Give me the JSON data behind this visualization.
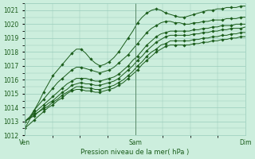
{
  "title": "",
  "xlabel": "Pression niveau de la mer( hPa )",
  "ylim": [
    1012,
    1021.5
  ],
  "xlim": [
    0,
    48
  ],
  "yticks": [
    1012,
    1013,
    1014,
    1015,
    1016,
    1017,
    1018,
    1019,
    1020,
    1021
  ],
  "xtick_positions": [
    0,
    24,
    48
  ],
  "xtick_labels": [
    "Ven",
    "Sam",
    "Dim"
  ],
  "bg_color": "#cceedd",
  "grid_color": "#99ccbb",
  "line_color": "#1a5c1a",
  "marker_color": "#1a5c1a",
  "series": [
    [
      1012.5,
      1013.1,
      1013.8,
      1014.4,
      1015.1,
      1015.7,
      1016.3,
      1016.7,
      1017.1,
      1017.5,
      1017.9,
      1018.2,
      1018.2,
      1017.9,
      1017.5,
      1017.2,
      1017.0,
      1017.1,
      1017.3,
      1017.6,
      1018.0,
      1018.5,
      1019.0,
      1019.5,
      1020.1,
      1020.5,
      1020.8,
      1021.0,
      1021.1,
      1021.0,
      1020.8,
      1020.7,
      1020.6,
      1020.5,
      1020.5,
      1020.6,
      1020.7,
      1020.8,
      1020.9,
      1021.0,
      1021.0,
      1021.1,
      1021.1,
      1021.2,
      1021.2,
      1021.2,
      1021.3,
      1021.3
    ],
    [
      1013.0,
      1013.3,
      1013.8,
      1014.2,
      1014.6,
      1015.0,
      1015.4,
      1015.8,
      1016.1,
      1016.4,
      1016.7,
      1016.9,
      1016.9,
      1016.8,
      1016.7,
      1016.6,
      1016.5,
      1016.6,
      1016.7,
      1016.9,
      1017.2,
      1017.5,
      1017.8,
      1018.2,
      1018.6,
      1019.0,
      1019.4,
      1019.7,
      1019.9,
      1020.1,
      1020.2,
      1020.2,
      1020.1,
      1020.1,
      1020.0,
      1020.0,
      1020.1,
      1020.1,
      1020.2,
      1020.2,
      1020.3,
      1020.3,
      1020.3,
      1020.4,
      1020.4,
      1020.4,
      1020.5,
      1020.5
    ],
    [
      1013.0,
      1013.3,
      1013.6,
      1013.9,
      1014.2,
      1014.5,
      1014.8,
      1015.1,
      1015.4,
      1015.7,
      1015.9,
      1016.1,
      1016.1,
      1016.1,
      1016.0,
      1015.9,
      1015.9,
      1016.0,
      1016.1,
      1016.2,
      1016.4,
      1016.7,
      1017.0,
      1017.4,
      1017.7,
      1018.1,
      1018.5,
      1018.8,
      1019.1,
      1019.3,
      1019.4,
      1019.5,
      1019.5,
      1019.5,
      1019.5,
      1019.5,
      1019.6,
      1019.6,
      1019.7,
      1019.7,
      1019.8,
      1019.8,
      1019.9,
      1019.9,
      1019.9,
      1020.0,
      1020.0,
      1020.0
    ],
    [
      1013.0,
      1013.2,
      1013.5,
      1013.7,
      1014.0,
      1014.3,
      1014.5,
      1014.8,
      1015.1,
      1015.3,
      1015.6,
      1015.7,
      1015.8,
      1015.7,
      1015.7,
      1015.6,
      1015.6,
      1015.7,
      1015.8,
      1015.9,
      1016.1,
      1016.4,
      1016.7,
      1017.0,
      1017.4,
      1017.7,
      1018.1,
      1018.4,
      1018.7,
      1018.9,
      1019.1,
      1019.2,
      1019.2,
      1019.2,
      1019.2,
      1019.2,
      1019.3,
      1019.3,
      1019.4,
      1019.4,
      1019.5,
      1019.5,
      1019.6,
      1019.6,
      1019.7,
      1019.7,
      1019.7,
      1019.8
    ],
    [
      1013.0,
      1013.2,
      1013.4,
      1013.7,
      1013.9,
      1014.1,
      1014.4,
      1014.6,
      1014.9,
      1015.1,
      1015.3,
      1015.5,
      1015.5,
      1015.4,
      1015.4,
      1015.3,
      1015.3,
      1015.4,
      1015.5,
      1015.6,
      1015.8,
      1016.0,
      1016.3,
      1016.6,
      1017.0,
      1017.3,
      1017.7,
      1018.0,
      1018.2,
      1018.5,
      1018.6,
      1018.8,
      1018.8,
      1018.8,
      1018.8,
      1018.8,
      1018.9,
      1018.9,
      1019.0,
      1019.0,
      1019.1,
      1019.1,
      1019.2,
      1019.2,
      1019.3,
      1019.3,
      1019.4,
      1019.4
    ],
    [
      1012.5,
      1012.8,
      1013.1,
      1013.4,
      1013.7,
      1014.0,
      1014.2,
      1014.5,
      1014.7,
      1015.0,
      1015.2,
      1015.3,
      1015.3,
      1015.2,
      1015.2,
      1015.1,
      1015.1,
      1015.2,
      1015.3,
      1015.4,
      1015.6,
      1015.8,
      1016.1,
      1016.4,
      1016.7,
      1017.1,
      1017.4,
      1017.7,
      1018.0,
      1018.2,
      1018.4,
      1018.5,
      1018.5,
      1018.5,
      1018.5,
      1018.5,
      1018.6,
      1018.6,
      1018.7,
      1018.7,
      1018.8,
      1018.8,
      1018.9,
      1018.9,
      1019.0,
      1019.0,
      1019.1,
      1019.1
    ]
  ]
}
